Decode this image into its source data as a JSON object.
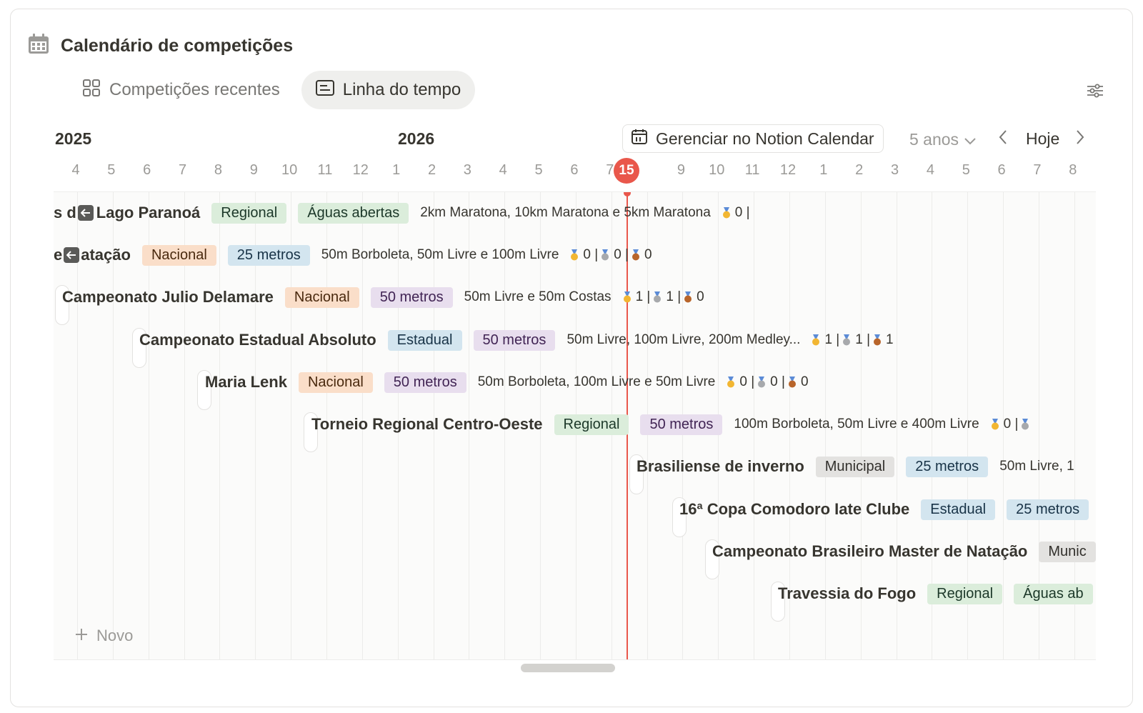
{
  "header": {
    "title": "Calendário de competições",
    "icon": "calendar-icon"
  },
  "tabs": [
    {
      "label": "Competições recentes",
      "icon": "grid-icon",
      "active": false
    },
    {
      "label": "Linha do tempo",
      "icon": "timeline-icon",
      "active": true
    }
  ],
  "timeline": {
    "years": [
      "2025",
      "2026"
    ],
    "months": [
      "4",
      "5",
      "6",
      "7",
      "8",
      "9",
      "10",
      "11",
      "12",
      "1",
      "2",
      "3",
      "4",
      "5",
      "6",
      "7",
      "8",
      "9",
      "10",
      "11",
      "12",
      "1",
      "2",
      "3",
      "4",
      "5",
      "6",
      "7",
      "8"
    ],
    "today_label": "15",
    "manage_label": "Gerenciar no Notion Calendar",
    "range_label": "5 anos",
    "today_button": "Hoje"
  },
  "rows": [
    {
      "prefix": "s d",
      "back": true,
      "title": "Lago Paranoá",
      "tags": [
        {
          "label": "Regional",
          "kind": "regional"
        },
        {
          "label": "Águas abertas",
          "kind": "aguas"
        }
      ],
      "events": "2km Maratona, 10km Maratona e 5km Maratona",
      "medals": "0 |"
    },
    {
      "prefix": "e",
      "back": true,
      "title": "atação",
      "tags": [
        {
          "label": "Nacional",
          "kind": "nacional"
        },
        {
          "label": "25 metros",
          "kind": "25"
        }
      ],
      "events": "50m Borboleta, 50m Livre e 100m Livre",
      "medals": [
        "0 |",
        "0 |",
        "0"
      ]
    },
    {
      "title": "Campeonato Julio Delamare",
      "tags": [
        {
          "label": "Nacional",
          "kind": "nacional"
        },
        {
          "label": "50 metros",
          "kind": "50"
        }
      ],
      "events": "50m Livre e 50m Costas",
      "medals": [
        "1 |",
        "1 |",
        "0"
      ]
    },
    {
      "title": "Campeonato Estadual Absoluto",
      "tags": [
        {
          "label": "Estadual",
          "kind": "estadual"
        },
        {
          "label": "50 metros",
          "kind": "50"
        }
      ],
      "events": "50m Livre, 100m Livre, 200m Medley...",
      "medals": [
        "1 |",
        "1 |",
        "1"
      ]
    },
    {
      "title": "Maria Lenk",
      "tags": [
        {
          "label": "Nacional",
          "kind": "nacional"
        },
        {
          "label": "50 metros",
          "kind": "50"
        }
      ],
      "events": "50m Borboleta, 100m Livre e 50m Livre",
      "medals": [
        "0 |",
        "0 |",
        "0"
      ]
    },
    {
      "title": "Torneio Regional Centro-Oeste",
      "tags": [
        {
          "label": "Regional",
          "kind": "regional"
        },
        {
          "label": "50 metros",
          "kind": "50"
        }
      ],
      "events": "100m Borboleta, 50m Livre e 400m Livre",
      "medals": [
        "0 |",
        ""
      ]
    },
    {
      "title": "Brasiliense de inverno",
      "tags": [
        {
          "label": "Municipal",
          "kind": "municipal"
        },
        {
          "label": "25 metros",
          "kind": "25"
        }
      ],
      "events": "50m Livre, 1"
    },
    {
      "title": "16ª Copa Comodoro Iate Clube",
      "tags": [
        {
          "label": "Estadual",
          "kind": "estadual"
        },
        {
          "label": "25 metros",
          "kind": "25"
        }
      ]
    },
    {
      "title": "Campeonato Brasileiro Master de Natação",
      "tags": [
        {
          "label": "Munic",
          "kind": "municipal"
        }
      ]
    },
    {
      "title": "Travessia do Fogo",
      "tags": [
        {
          "label": "Regional",
          "kind": "regional"
        },
        {
          "label": "Águas ab",
          "kind": "aguas"
        }
      ]
    }
  ],
  "new_label": "Novo",
  "colors": {
    "today": "#e9574b",
    "gold": "#f2b632",
    "silver": "#a7a9ac",
    "bronze": "#b8652b"
  }
}
